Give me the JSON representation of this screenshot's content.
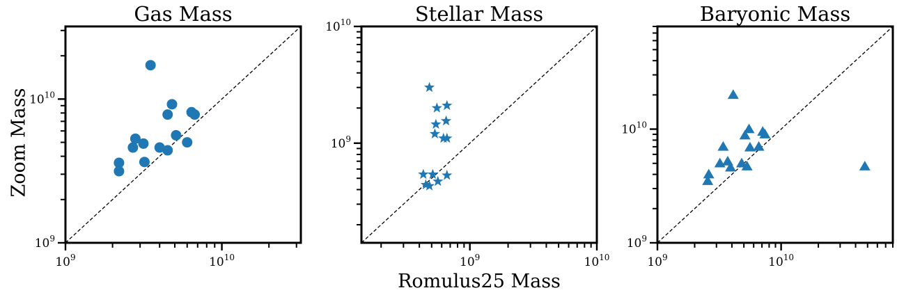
{
  "chart_data": [
    {
      "type": "scatter",
      "title": "Gas Mass",
      "xlabel": "",
      "ylabel": "Zoom Mass",
      "xscale": "log",
      "yscale": "log",
      "xlim": [
        1000000000.0,
        32000000000.0
      ],
      "ylim": [
        1000000000.0,
        32000000000.0
      ],
      "marker": "circle",
      "color": "#1f77b4",
      "reference_line": "y = x",
      "x_ticks": [
        {
          "base": "10",
          "exp": "9",
          "value": 1000000000.0
        },
        {
          "base": "10",
          "exp": "10",
          "value": 10000000000.0
        }
      ],
      "y_ticks": [
        {
          "base": "10",
          "exp": "9",
          "value": 1000000000.0
        },
        {
          "base": "10",
          "exp": "10",
          "value": 10000000000.0
        }
      ],
      "points": [
        {
          "x": 3500000000.0,
          "y": 17200000000.0
        },
        {
          "x": 4800000000.0,
          "y": 9200000000.0
        },
        {
          "x": 4500000000.0,
          "y": 7800000000.0
        },
        {
          "x": 6400000000.0,
          "y": 8100000000.0
        },
        {
          "x": 6700000000.0,
          "y": 7800000000.0
        },
        {
          "x": 2800000000.0,
          "y": 5300000000.0
        },
        {
          "x": 5100000000.0,
          "y": 5600000000.0
        },
        {
          "x": 3150000000.0,
          "y": 4900000000.0
        },
        {
          "x": 2700000000.0,
          "y": 4600000000.0
        },
        {
          "x": 4000000000.0,
          "y": 4600000000.0
        },
        {
          "x": 4500000000.0,
          "y": 4400000000.0
        },
        {
          "x": 6000000000.0,
          "y": 5000000000.0
        },
        {
          "x": 3200000000.0,
          "y": 3650000000.0
        },
        {
          "x": 2200000000.0,
          "y": 3600000000.0
        },
        {
          "x": 2200000000.0,
          "y": 3150000000.0
        }
      ]
    },
    {
      "type": "scatter",
      "title": "Stellar Mass",
      "xlabel": "Romulus25 Mass",
      "ylabel": "",
      "xscale": "log",
      "yscale": "log",
      "xlim": [
        140000000.0,
        10000000000.0
      ],
      "ylim": [
        140000000.0,
        10000000000.0
      ],
      "marker": "star",
      "color": "#1f77b4",
      "reference_line": "y = x",
      "x_ticks": [
        {
          "base": "10",
          "exp": "9",
          "value": 1000000000.0
        },
        {
          "base": "10",
          "exp": "10",
          "value": 10000000000.0
        }
      ],
      "y_ticks": [
        {
          "base": "10",
          "exp": "9",
          "value": 1000000000.0
        },
        {
          "base": "10",
          "exp": "10",
          "value": 10000000000.0
        }
      ],
      "points": [
        {
          "x": 480000000.0,
          "y": 3000000000.0
        },
        {
          "x": 550000000.0,
          "y": 2000000000.0
        },
        {
          "x": 660000000.0,
          "y": 2100000000.0
        },
        {
          "x": 540000000.0,
          "y": 1450000000.0
        },
        {
          "x": 650000000.0,
          "y": 1550000000.0
        },
        {
          "x": 530000000.0,
          "y": 1200000000.0
        },
        {
          "x": 620000000.0,
          "y": 1100000000.0
        },
        {
          "x": 660000000.0,
          "y": 1100000000.0
        },
        {
          "x": 430000000.0,
          "y": 540000000.0
        },
        {
          "x": 510000000.0,
          "y": 540000000.0
        },
        {
          "x": 660000000.0,
          "y": 530000000.0
        },
        {
          "x": 560000000.0,
          "y": 470000000.0
        },
        {
          "x": 450000000.0,
          "y": 440000000.0
        },
        {
          "x": 480000000.0,
          "y": 430000000.0
        }
      ]
    },
    {
      "type": "scatter",
      "title": "Baryonic Mass",
      "xlabel": "",
      "ylabel": "",
      "xscale": "log",
      "yscale": "log",
      "xlim": [
        1000000000.0,
        80000000000.0
      ],
      "ylim": [
        1000000000.0,
        80000000000.0
      ],
      "marker": "triangle",
      "color": "#1f77b4",
      "reference_line": "y = x",
      "x_ticks": [
        {
          "base": "10",
          "exp": "9",
          "value": 1000000000.0
        },
        {
          "base": "10",
          "exp": "10",
          "value": 10000000000.0
        }
      ],
      "y_ticks": [
        {
          "base": "10",
          "exp": "9",
          "value": 1000000000.0
        },
        {
          "base": "10",
          "exp": "10",
          "value": 10000000000.0
        }
      ],
      "points": [
        {
          "x": 4100000000.0,
          "y": 20000000000.0
        },
        {
          "x": 5500000000.0,
          "y": 10000000000.0
        },
        {
          "x": 7100000000.0,
          "y": 9500000000.0
        },
        {
          "x": 7400000000.0,
          "y": 9000000000.0
        },
        {
          "x": 5100000000.0,
          "y": 8800000000.0
        },
        {
          "x": 3400000000.0,
          "y": 7000000000.0
        },
        {
          "x": 5600000000.0,
          "y": 6900000000.0
        },
        {
          "x": 6600000000.0,
          "y": 7000000000.0
        },
        {
          "x": 3200000000.0,
          "y": 5000000000.0
        },
        {
          "x": 3700000000.0,
          "y": 5200000000.0
        },
        {
          "x": 4800000000.0,
          "y": 5000000000.0
        },
        {
          "x": 3900000000.0,
          "y": 4600000000.0
        },
        {
          "x": 5300000000.0,
          "y": 4700000000.0
        },
        {
          "x": 2600000000.0,
          "y": 4000000000.0
        },
        {
          "x": 2550000000.0,
          "y": 3500000000.0
        },
        {
          "x": 47500000000.0,
          "y": 4700000000.0
        }
      ]
    }
  ]
}
